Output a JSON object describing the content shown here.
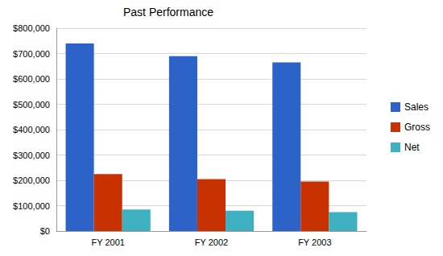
{
  "chart_data": {
    "type": "bar",
    "title": "Past Performance",
    "categories": [
      "FY 2001",
      "FY 2002",
      "FY 2003"
    ],
    "series": [
      {
        "name": "Sales",
        "color": "#2d62c8",
        "values": [
          740000,
          690000,
          665000
        ]
      },
      {
        "name": "Gross",
        "color": "#c83200",
        "values": [
          225000,
          205000,
          195000
        ]
      },
      {
        "name": "Net",
        "color": "#3fb0c0",
        "values": [
          85000,
          80000,
          75000
        ]
      }
    ],
    "ylim": [
      0,
      800000
    ],
    "yticks": [
      {
        "value": 0,
        "label": "$0"
      },
      {
        "value": 100000,
        "label": "$100,000"
      },
      {
        "value": 200000,
        "label": "$200,000"
      },
      {
        "value": 300000,
        "label": "$300,000"
      },
      {
        "value": 400000,
        "label": "$400,000"
      },
      {
        "value": 500000,
        "label": "$500,000"
      },
      {
        "value": 600000,
        "label": "$600,000"
      },
      {
        "value": 700000,
        "label": "$700,000"
      },
      {
        "value": 800000,
        "label": "$800,000"
      }
    ],
    "grid": true,
    "legend": "right"
  }
}
